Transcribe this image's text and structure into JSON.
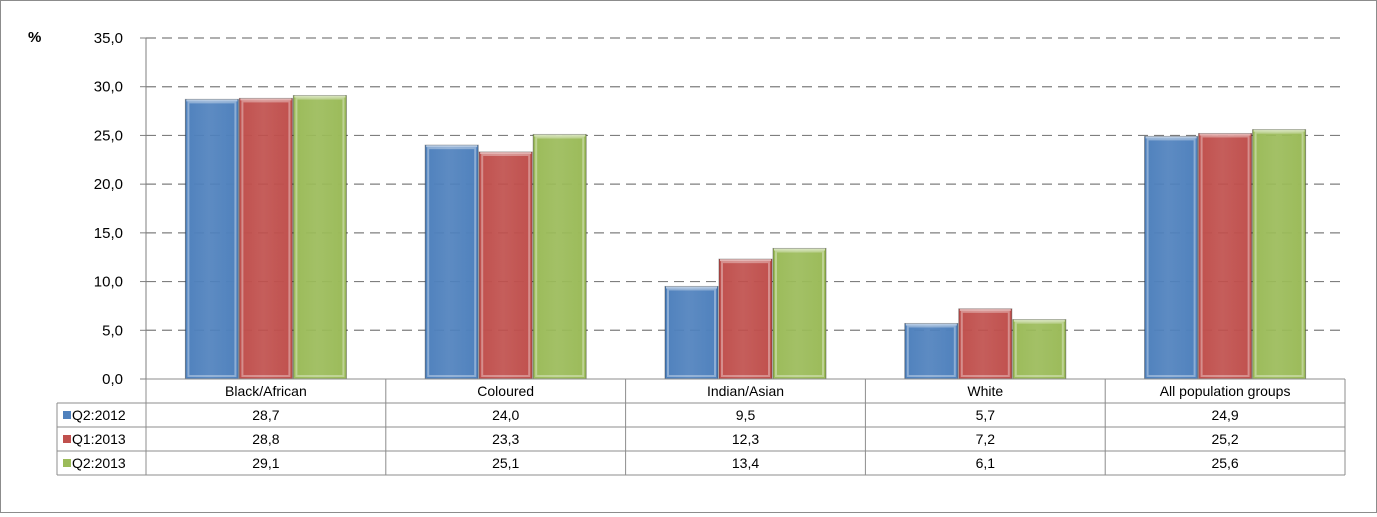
{
  "chart_data": {
    "type": "bar",
    "title": "",
    "ylabel": "%",
    "xlabel": "",
    "ylim": [
      0,
      35
    ],
    "yticks": [
      "0,0",
      "5,0",
      "10,0",
      "15,0",
      "20,0",
      "25,0",
      "30,0",
      "35,0"
    ],
    "grid": true,
    "legend": "data-table",
    "categories": [
      "Black/African",
      "Coloured",
      "Indian/Asian",
      "White",
      "All population groups"
    ],
    "series": [
      {
        "name": "Q2:2012",
        "color": "#4f81bd",
        "values": [
          28.7,
          24.0,
          9.5,
          5.7,
          24.9
        ],
        "labels": [
          "28,7",
          "24,0",
          "9,5",
          "5,7",
          "24,9"
        ]
      },
      {
        "name": "Q1:2013",
        "color": "#c0504d",
        "values": [
          28.8,
          23.3,
          12.3,
          7.2,
          25.2
        ],
        "labels": [
          "28,8",
          "23,3",
          "12,3",
          "7,2",
          "25,2"
        ]
      },
      {
        "name": "Q2:2013",
        "color": "#9bbb59",
        "values": [
          29.1,
          25.1,
          13.4,
          6.1,
          25.6
        ],
        "labels": [
          "29,1",
          "25,1",
          "13,4",
          "6,1",
          "25,6"
        ]
      }
    ]
  }
}
